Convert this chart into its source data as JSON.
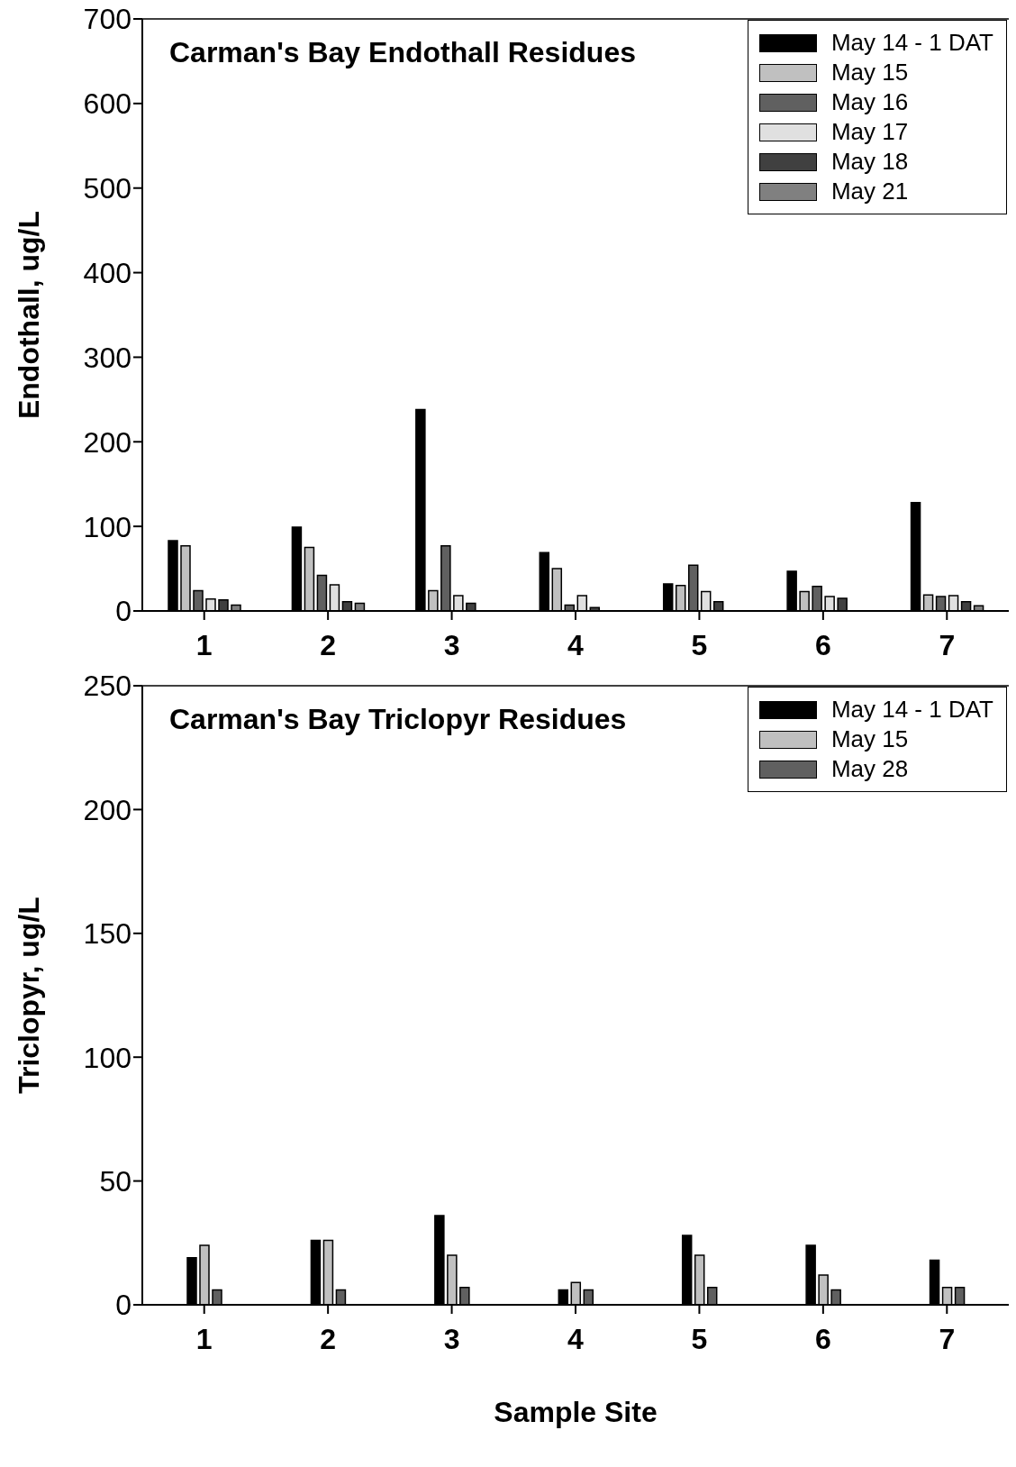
{
  "chart_data": [
    {
      "type": "bar",
      "title": "Carman's Bay Endothall Residues",
      "ylabel": "Endothall, ug/L",
      "categories": [
        "1",
        "2",
        "3",
        "4",
        "5",
        "6",
        "7"
      ],
      "ylim": [
        0,
        700
      ],
      "yticks": [
        0,
        100,
        200,
        300,
        400,
        500,
        600,
        700
      ],
      "legend": "top right",
      "series": [
        {
          "name": "May 14 - 1 DAT",
          "color": "#000000",
          "values": [
            83,
            99,
            238,
            69,
            32,
            47,
            128
          ]
        },
        {
          "name": "May 15",
          "color": "#c0c0c0",
          "values": [
            77,
            75,
            24,
            50,
            30,
            23,
            19
          ]
        },
        {
          "name": "May 16",
          "color": "#606060",
          "values": [
            24,
            42,
            77,
            7,
            54,
            29,
            17
          ]
        },
        {
          "name": "May 17",
          "color": "#e0e0e0",
          "values": [
            14,
            31,
            18,
            18,
            23,
            17,
            18
          ]
        },
        {
          "name": "May 18",
          "color": "#404040",
          "values": [
            13,
            11,
            9,
            4,
            11,
            15,
            11
          ]
        },
        {
          "name": "May 21",
          "color": "#808080",
          "values": [
            7,
            9,
            null,
            null,
            null,
            null,
            6
          ]
        }
      ]
    },
    {
      "type": "bar",
      "title": "Carman's Bay Triclopyr Residues",
      "ylabel": "Triclopyr, ug/L",
      "xlabel": "Sample Site",
      "categories": [
        "1",
        "2",
        "3",
        "4",
        "5",
        "6",
        "7"
      ],
      "ylim": [
        0,
        250
      ],
      "yticks": [
        0,
        50,
        100,
        150,
        200,
        250
      ],
      "legend": "top right",
      "series": [
        {
          "name": "May 14 - 1 DAT",
          "color": "#000000",
          "values": [
            19,
            26,
            36,
            6,
            28,
            24,
            18
          ]
        },
        {
          "name": "May 15",
          "color": "#c0c0c0",
          "values": [
            24,
            26,
            20,
            9,
            20,
            12,
            7
          ]
        },
        {
          "name": "May 28",
          "color": "#606060",
          "values": [
            6,
            6,
            7,
            6,
            7,
            6,
            7
          ]
        }
      ]
    }
  ]
}
